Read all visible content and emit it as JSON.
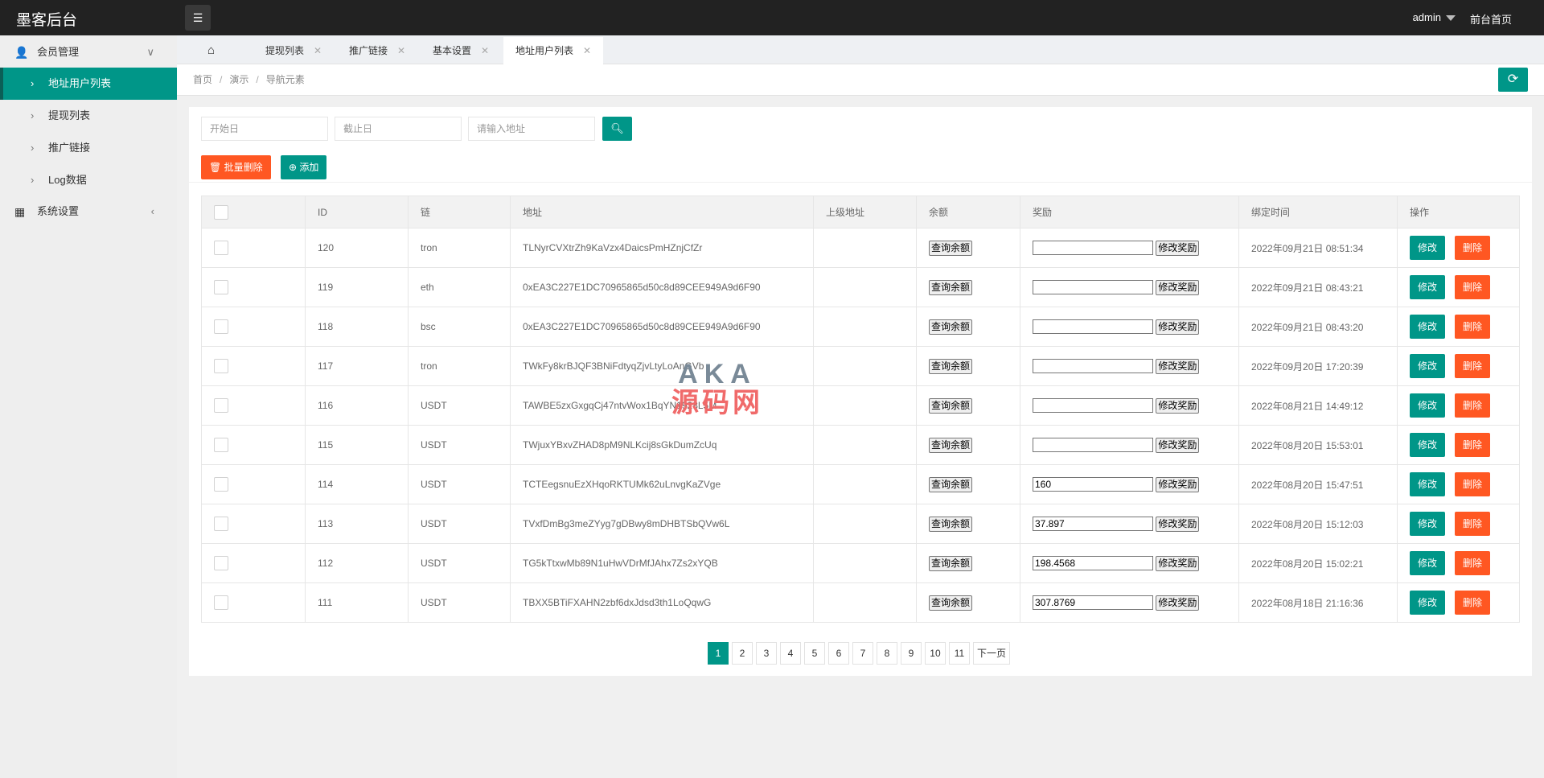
{
  "app": {
    "title": "墨客后台",
    "user": "admin",
    "front_link": "前台首页"
  },
  "sidebar": {
    "groups": [
      {
        "label": "会员管理",
        "items": [
          {
            "label": "地址用户列表",
            "active": true
          },
          {
            "label": "提现列表"
          },
          {
            "label": "推广链接"
          },
          {
            "label": "Log数据"
          }
        ]
      },
      {
        "label": "系统设置"
      }
    ]
  },
  "tabs": [
    {
      "label": "提现列表"
    },
    {
      "label": "推广链接"
    },
    {
      "label": "基本设置"
    },
    {
      "label": "地址用户列表",
      "active": true
    }
  ],
  "breadcrumb": [
    "首页",
    "演示",
    "导航元素"
  ],
  "filters": {
    "start_placeholder": "开始日",
    "end_placeholder": "截止日",
    "address_placeholder": "请输入地址"
  },
  "actions": {
    "batch_delete": "批量删除",
    "add": "添加"
  },
  "table": {
    "headers": [
      "ID",
      "链",
      "地址",
      "上级地址",
      "余额",
      "奖励",
      "绑定时间",
      "操作"
    ],
    "query_balance": "查询余额",
    "edit_reward": "修改奖励",
    "edit": "修改",
    "delete": "删除",
    "rows": [
      {
        "id": "120",
        "chain": "tron",
        "address": "TLNyrCVXtrZh9KaVzx4DaicsPmHZnjCfZr",
        "parent": "",
        "reward": "",
        "time": "2022年09月21日 08:51:34"
      },
      {
        "id": "119",
        "chain": "eth",
        "address": "0xEA3C227E1DC70965865d50c8d89CEE949A9d6F90",
        "parent": "",
        "reward": "",
        "time": "2022年09月21日 08:43:21"
      },
      {
        "id": "118",
        "chain": "bsc",
        "address": "0xEA3C227E1DC70965865d50c8d89CEE949A9d6F90",
        "parent": "",
        "reward": "",
        "time": "2022年09月21日 08:43:20"
      },
      {
        "id": "117",
        "chain": "tron",
        "address": "TWkFy8krBJQF3BNiFdtyqZjvLtyLoAnGVb",
        "parent": "",
        "reward": "",
        "time": "2022年09月20日 17:20:39"
      },
      {
        "id": "116",
        "chain": "USDT",
        "address": "TAWBE5zxGxgqCj47ntvWox1BqYN1928L5M",
        "parent": "",
        "reward": "",
        "time": "2022年08月21日 14:49:12"
      },
      {
        "id": "115",
        "chain": "USDT",
        "address": "TWjuxYBxvZHAD8pM9NLKcij8sGkDumZcUq",
        "parent": "",
        "reward": "",
        "time": "2022年08月20日 15:53:01"
      },
      {
        "id": "114",
        "chain": "USDT",
        "address": "TCTEegsnuEzXHqoRKTUMk62uLnvgKaZVge",
        "parent": "",
        "reward": "160",
        "time": "2022年08月20日 15:47:51"
      },
      {
        "id": "113",
        "chain": "USDT",
        "address": "TVxfDmBg3meZYyg7gDBwy8mDHBTSbQVw6L",
        "parent": "",
        "reward": "37.897",
        "time": "2022年08月20日 15:12:03"
      },
      {
        "id": "112",
        "chain": "USDT",
        "address": "TG5kTtxwMb89N1uHwVDrMfJAhx7Zs2xYQB",
        "parent": "",
        "reward": "198.4568",
        "time": "2022年08月20日 15:02:21"
      },
      {
        "id": "111",
        "chain": "USDT",
        "address": "TBXX5BTiFXAHN2zbf6dxJdsd3th1LoQqwG",
        "parent": "",
        "reward": "307.8769",
        "time": "2022年08月18日 21:16:36"
      }
    ]
  },
  "pagination": {
    "pages": [
      "1",
      "2",
      "3",
      "4",
      "5",
      "6",
      "7",
      "8",
      "9",
      "10",
      "11"
    ],
    "current": "1",
    "next": "下一页"
  },
  "watermark": {
    "line1": "AKA",
    "line2": "源码网"
  },
  "colors": {
    "primary": "#009688",
    "danger": "#FF5722",
    "header": "#222222"
  }
}
